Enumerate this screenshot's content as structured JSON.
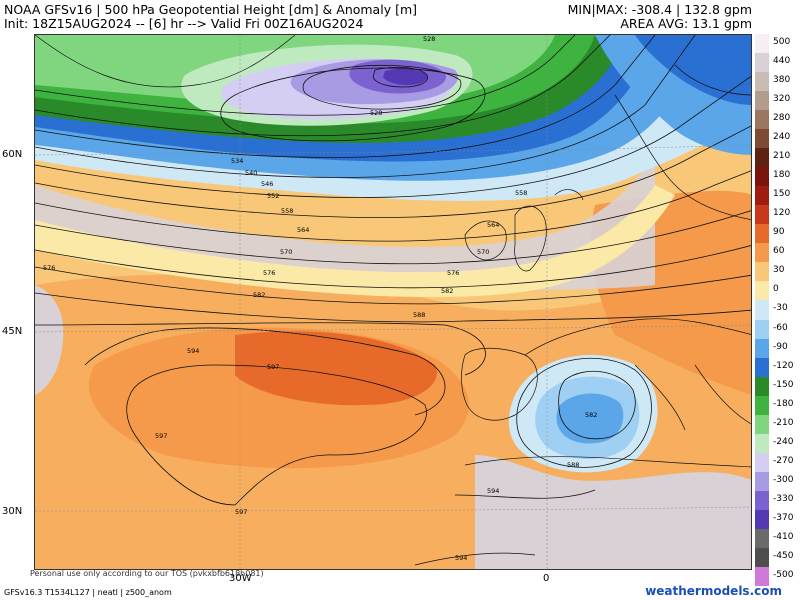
{
  "header": {
    "title": "NOAA GFSv16 | 500 hPa Geopotential Height [dm] & Anomaly [m]",
    "init": "Init: 18Z15AUG2024 -- [6] hr --> Valid Fri 00Z16AUG2024",
    "minmax": "MIN|MAX: -308.4 | 132.8 gpm",
    "area_avg": "AREA AVG: 13.1 gpm"
  },
  "axes": {
    "lat_labels": [
      "60N",
      "45N",
      "30N"
    ],
    "lon_labels": [
      "30W",
      "0"
    ]
  },
  "contour_labels": [
    "528",
    "528",
    "534",
    "540",
    "546",
    "552",
    "558",
    "564",
    "570",
    "576",
    "576",
    "576",
    "582",
    "582",
    "588",
    "594",
    "597",
    "597",
    "597",
    "582",
    "588",
    "594",
    "594",
    "558",
    "564",
    "570"
  ],
  "colorbar": {
    "labels": [
      "500",
      "440",
      "380",
      "320",
      "280",
      "240",
      "210",
      "180",
      "150",
      "120",
      "90",
      "60",
      "30",
      "0",
      "-30",
      "-60",
      "-90",
      "-120",
      "-150",
      "-180",
      "-210",
      "-240",
      "-270",
      "-300",
      "-330",
      "-370",
      "-410",
      "-450",
      "-500"
    ],
    "colors": [
      "#f7eef4",
      "#d9d1d6",
      "#c9bcb4",
      "#b49c8c",
      "#9b7660",
      "#7d4a34",
      "#5e2212",
      "#7a140c",
      "#a01c10",
      "#c9381a",
      "#e86a2a",
      "#f59a4a",
      "#f8c878",
      "#fbe9a8",
      "#cfe8f6",
      "#9fd0f4",
      "#5aa6e8",
      "#2a6fd2",
      "#2a8a2a",
      "#3fb33f",
      "#7fd67f",
      "#bfeabf",
      "#d4cff2",
      "#a99ae4",
      "#7c62d0",
      "#5438b4",
      "#6a6a6a",
      "#4e4e4e",
      "#cf7ad8"
    ]
  },
  "footer": {
    "model": "GFSv16.3 T1534L127 | neatl | z500_anom",
    "tos": "Personal use only according to our TOS (pvkxbfb618h081)",
    "site": "weathermodels.com"
  }
}
